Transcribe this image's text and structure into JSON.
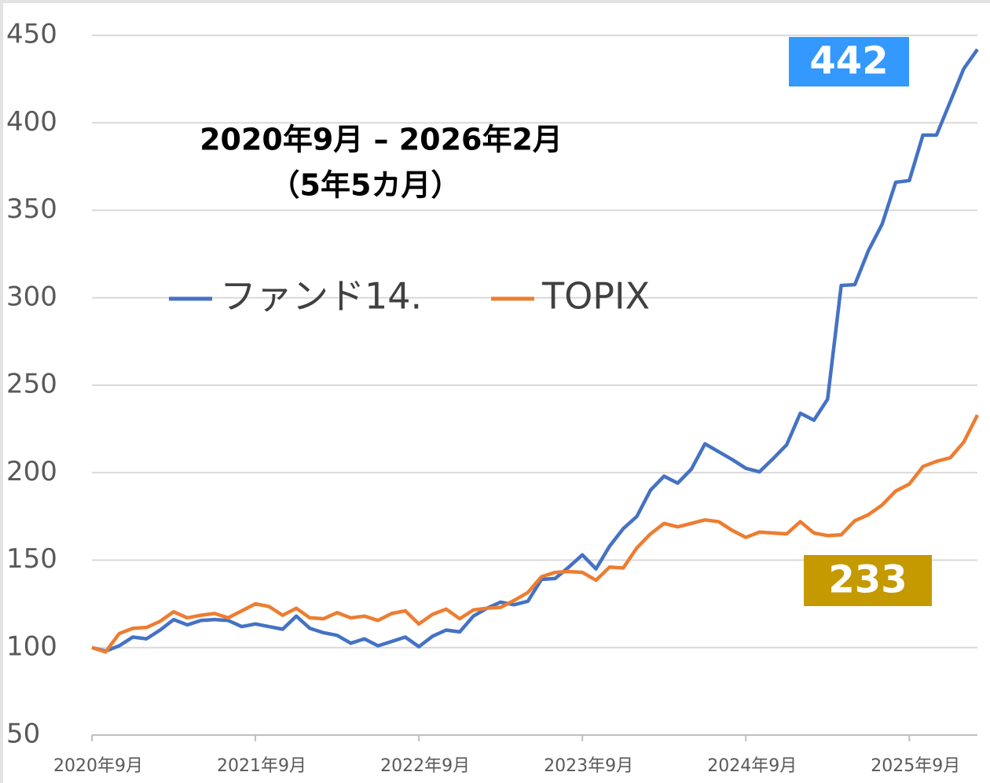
{
  "chart_data": {
    "type": "line",
    "annotations": [
      "2020年9月 – 2026年2月",
      "（5年5カ月）"
    ],
    "categories": [
      "2020年9月",
      null,
      null,
      null,
      null,
      null,
      null,
      null,
      null,
      null,
      null,
      null,
      "2021年9月",
      null,
      null,
      null,
      null,
      null,
      null,
      null,
      null,
      null,
      null,
      null,
      "2022年9月",
      null,
      null,
      null,
      null,
      null,
      null,
      null,
      null,
      null,
      null,
      null,
      "2023年9月",
      null,
      null,
      null,
      null,
      null,
      null,
      null,
      null,
      null,
      null,
      null,
      "2024年9月",
      null,
      null,
      null,
      null,
      null,
      null,
      null,
      null,
      null,
      null,
      null,
      "2025年9月",
      null,
      null,
      null,
      null,
      null
    ],
    "series": [
      {
        "name": "ファンド14.",
        "color": "#4472c4",
        "label_color": "#3399ff",
        "values": [
          100,
          98,
          101,
          106,
          105,
          110,
          116,
          113,
          115.5,
          116,
          115.5,
          112,
          113.5,
          112,
          110.5,
          118,
          111,
          108.5,
          107,
          102.5,
          105,
          101,
          103.5,
          106,
          100.5,
          106.5,
          110,
          109,
          118,
          122.5,
          126,
          124.5,
          126.5,
          139,
          139.5,
          146,
          153,
          145,
          158,
          168,
          175,
          190,
          198,
          194,
          202,
          216.5,
          212,
          207.5,
          202.5,
          200.5,
          208,
          216,
          234,
          230,
          242,
          307,
          307.5,
          327,
          342,
          366,
          367,
          393,
          393,
          412,
          431,
          442
        ]
      },
      {
        "name": "TOPIX",
        "color": "#ed7d31",
        "label_color": "#c49a00",
        "values": [
          100,
          97.5,
          108,
          111,
          111.5,
          115,
          120.5,
          117,
          118.5,
          119.5,
          117,
          121,
          125,
          123.5,
          118.5,
          122.5,
          117,
          116.5,
          120,
          117,
          118,
          115.5,
          119.5,
          121,
          113.5,
          119,
          122,
          116.5,
          121.5,
          122.5,
          123,
          127,
          131.5,
          140.5,
          143,
          143.5,
          143,
          138.5,
          146,
          145.5,
          157,
          165,
          171,
          169,
          171,
          173,
          172,
          167,
          163,
          166,
          165.5,
          165,
          172,
          165.5,
          164,
          164.5,
          172.5,
          176,
          181.5,
          189.5,
          193.5,
          203.5,
          206.5,
          208.5,
          217.5,
          233
        ]
      }
    ],
    "ylim": [
      50,
      450
    ],
    "yticks": [
      50,
      100,
      150,
      200,
      250,
      300,
      350,
      400,
      450
    ],
    "grid": true
  }
}
